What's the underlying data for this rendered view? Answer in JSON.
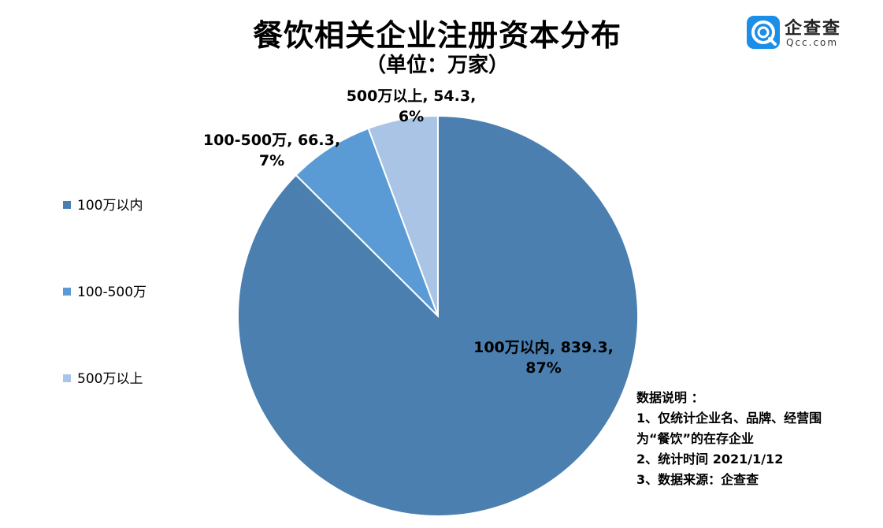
{
  "chart_data": {
    "type": "pie",
    "title": "餐饮相关企业注册资本分布",
    "subtitle": "（单位：万家）",
    "categories": [
      "100万以内",
      "100-500万",
      "500万以上"
    ],
    "values": [
      839.3,
      66.3,
      54.3
    ],
    "percents": [
      "87%",
      "7%",
      "6%"
    ],
    "data_labels": [
      [
        "100万以内, 839.3,",
        "87%"
      ],
      [
        "100-500万, 66.3,",
        "7%"
      ],
      [
        "500万以上, 54.3,",
        "6%"
      ]
    ],
    "colors": [
      "#4a7fb0",
      "#5b9bd5",
      "#a9c4e4"
    ],
    "legend_position": "left",
    "start_angle": "12 o'clock, clockwise"
  },
  "logo": {
    "name_cn": "企查查",
    "name_en": "Qcc.com"
  },
  "note": {
    "lines": [
      "数据说明 ：",
      "1、仅统计企业名、品牌、经营围",
      "为“餐饮”的在存企业",
      "2、统计时间  2021/1/12",
      "3、数据来源：企查查"
    ]
  }
}
